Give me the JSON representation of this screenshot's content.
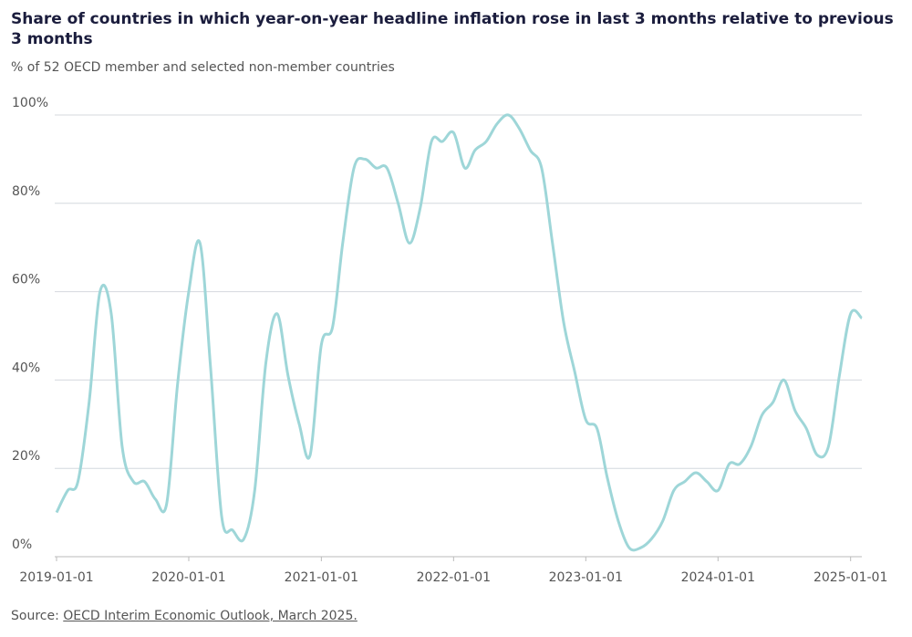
{
  "chart_data": {
    "type": "line",
    "title": "Share of countries in which year-on-year headline inflation rose in last 3 months relative to previous 3 months",
    "subtitle": "% of 52 OECD member and selected non-member countries",
    "source_prefix": "Source:",
    "source_link": "OECD Interim Economic Outlook, March 2025.",
    "x": [
      "2019-01-01",
      "2019-02-01",
      "2019-03-01",
      "2019-04-01",
      "2019-05-01",
      "2019-06-01",
      "2019-07-01",
      "2019-08-01",
      "2019-09-01",
      "2019-10-01",
      "2019-11-01",
      "2019-12-01",
      "2020-01-01",
      "2020-02-01",
      "2020-03-01",
      "2020-04-01",
      "2020-05-01",
      "2020-06-01",
      "2020-07-01",
      "2020-08-01",
      "2020-09-01",
      "2020-10-01",
      "2020-11-01",
      "2020-12-01",
      "2021-01-01",
      "2021-02-01",
      "2021-03-01",
      "2021-04-01",
      "2021-05-01",
      "2021-06-01",
      "2021-07-01",
      "2021-08-01",
      "2021-09-01",
      "2021-10-01",
      "2021-11-01",
      "2021-12-01",
      "2022-01-01",
      "2022-02-01",
      "2022-03-01",
      "2022-04-01",
      "2022-05-01",
      "2022-06-01",
      "2022-07-01",
      "2022-08-01",
      "2022-09-01",
      "2022-10-01",
      "2022-11-01",
      "2022-12-01",
      "2023-01-01",
      "2023-02-01",
      "2023-03-01",
      "2023-04-01",
      "2023-05-01",
      "2023-06-01",
      "2023-07-01",
      "2023-08-01",
      "2023-09-01",
      "2023-10-01",
      "2023-11-01",
      "2023-12-01",
      "2024-01-01",
      "2024-02-01",
      "2024-03-01",
      "2024-04-01",
      "2024-05-01",
      "2024-06-01",
      "2024-07-01",
      "2024-08-01",
      "2024-09-01",
      "2024-10-01",
      "2024-11-01",
      "2024-12-01",
      "2025-01-01",
      "2025-02-01"
    ],
    "series": [
      {
        "name": "Share of countries",
        "color": "#9ed6d8",
        "values": [
          10,
          15,
          17,
          35,
          60,
          55,
          25,
          17,
          17,
          13,
          12,
          39,
          60,
          71,
          43,
          9,
          6,
          4,
          15,
          44,
          55,
          41,
          30,
          23,
          48,
          52,
          71,
          88,
          90,
          88,
          88,
          80,
          71,
          79,
          94,
          94,
          96,
          88,
          92,
          94,
          98,
          100,
          97,
          92,
          88,
          71,
          53,
          42,
          31,
          29,
          18,
          8,
          2,
          2,
          4,
          8,
          15,
          17,
          19,
          17,
          15,
          21,
          21,
          25,
          32,
          35,
          40,
          33,
          29,
          23,
          25,
          41,
          55,
          54
        ]
      }
    ],
    "xlim": [
      "2019-01-01",
      "2025-02-01"
    ],
    "xticks": [
      "2019-01-01",
      "2020-01-01",
      "2021-01-01",
      "2022-01-01",
      "2023-01-01",
      "2024-01-01",
      "2025-01-01"
    ],
    "ylim": [
      0,
      100
    ],
    "yticks": [
      {
        "value": 0,
        "label": "0%"
      },
      {
        "value": 20,
        "label": "20%"
      },
      {
        "value": 40,
        "label": "40%"
      },
      {
        "value": 60,
        "label": "60%"
      },
      {
        "value": 80,
        "label": "80%"
      },
      {
        "value": 100,
        "label": "100%"
      }
    ],
    "grid": true
  }
}
